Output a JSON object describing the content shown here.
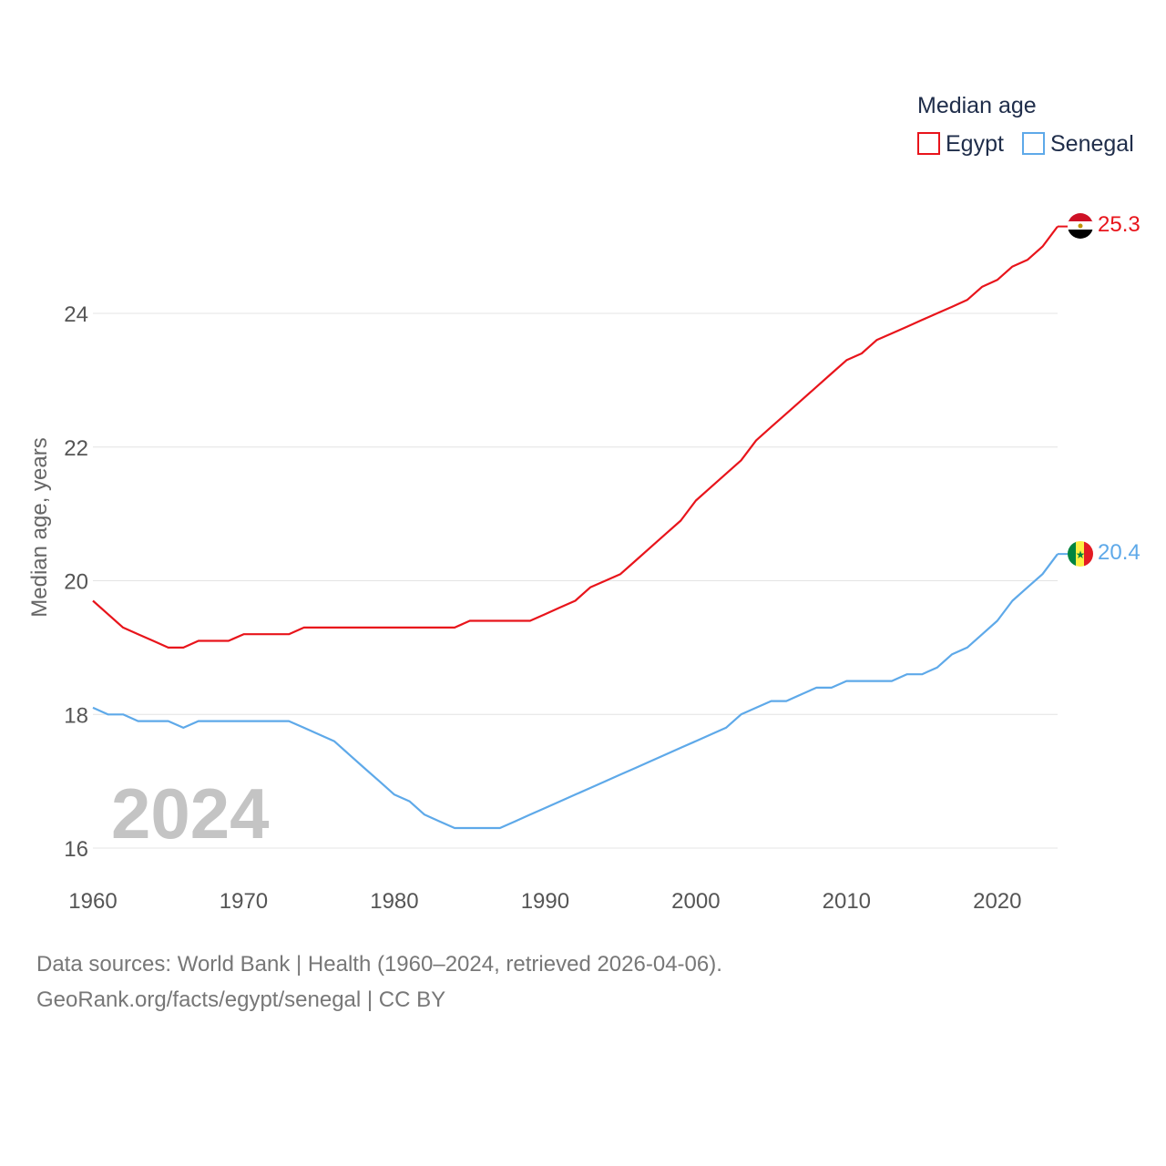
{
  "chart_data": {
    "type": "line",
    "title": "Median age",
    "xlabel": "",
    "ylabel": "Median age, years",
    "xlim": [
      1960,
      2024
    ],
    "ylim": [
      16,
      25.9
    ],
    "yticks": [
      16,
      18,
      20,
      22,
      24
    ],
    "xticks": [
      1960,
      1970,
      1980,
      1990,
      2000,
      2010,
      2020
    ],
    "grid": true,
    "legend_position": "top-right",
    "watermark_year": "2024",
    "x": [
      1960,
      1961,
      1962,
      1963,
      1964,
      1965,
      1966,
      1967,
      1968,
      1969,
      1970,
      1971,
      1972,
      1973,
      1974,
      1975,
      1976,
      1977,
      1978,
      1979,
      1980,
      1981,
      1982,
      1983,
      1984,
      1985,
      1986,
      1987,
      1988,
      1989,
      1990,
      1991,
      1992,
      1993,
      1994,
      1995,
      1996,
      1997,
      1998,
      1999,
      2000,
      2001,
      2002,
      2003,
      2004,
      2005,
      2006,
      2007,
      2008,
      2009,
      2010,
      2011,
      2012,
      2013,
      2014,
      2015,
      2016,
      2017,
      2018,
      2019,
      2020,
      2021,
      2022,
      2023,
      2024
    ],
    "series": [
      {
        "name": "Egypt",
        "color": "#e8141b",
        "end_label": "25.3",
        "flag": "egypt-flag",
        "values": [
          19.7,
          19.5,
          19.3,
          19.2,
          19.1,
          19.0,
          19.0,
          19.1,
          19.1,
          19.1,
          19.2,
          19.2,
          19.2,
          19.2,
          19.3,
          19.3,
          19.3,
          19.3,
          19.3,
          19.3,
          19.3,
          19.3,
          19.3,
          19.3,
          19.3,
          19.4,
          19.4,
          19.4,
          19.4,
          19.4,
          19.5,
          19.6,
          19.7,
          19.9,
          20.0,
          20.1,
          20.3,
          20.5,
          20.7,
          20.9,
          21.2,
          21.4,
          21.6,
          21.8,
          22.1,
          22.3,
          22.5,
          22.7,
          22.9,
          23.1,
          23.3,
          23.4,
          23.6,
          23.7,
          23.8,
          23.9,
          24.0,
          24.1,
          24.2,
          24.4,
          24.5,
          24.7,
          24.8,
          25.0,
          25.3
        ]
      },
      {
        "name": "Senegal",
        "color": "#5ea9e9",
        "end_label": "20.4",
        "flag": "senegal-flag",
        "values": [
          18.1,
          18.0,
          18.0,
          17.9,
          17.9,
          17.9,
          17.8,
          17.9,
          17.9,
          17.9,
          17.9,
          17.9,
          17.9,
          17.9,
          17.8,
          17.7,
          17.6,
          17.4,
          17.2,
          17.0,
          16.8,
          16.7,
          16.5,
          16.4,
          16.3,
          16.3,
          16.3,
          16.3,
          16.4,
          16.5,
          16.6,
          16.7,
          16.8,
          16.9,
          17.0,
          17.1,
          17.2,
          17.3,
          17.4,
          17.5,
          17.6,
          17.7,
          17.8,
          18.0,
          18.1,
          18.2,
          18.2,
          18.3,
          18.4,
          18.4,
          18.5,
          18.5,
          18.5,
          18.5,
          18.6,
          18.6,
          18.7,
          18.9,
          19.0,
          19.2,
          19.4,
          19.7,
          19.9,
          20.1,
          20.4
        ]
      }
    ]
  },
  "footer": {
    "line1": "Data sources: World Bank | Health (1960–2024, retrieved 2026-04-06).",
    "line2": "GeoRank.org/facts/egypt/senegal | CC BY"
  }
}
